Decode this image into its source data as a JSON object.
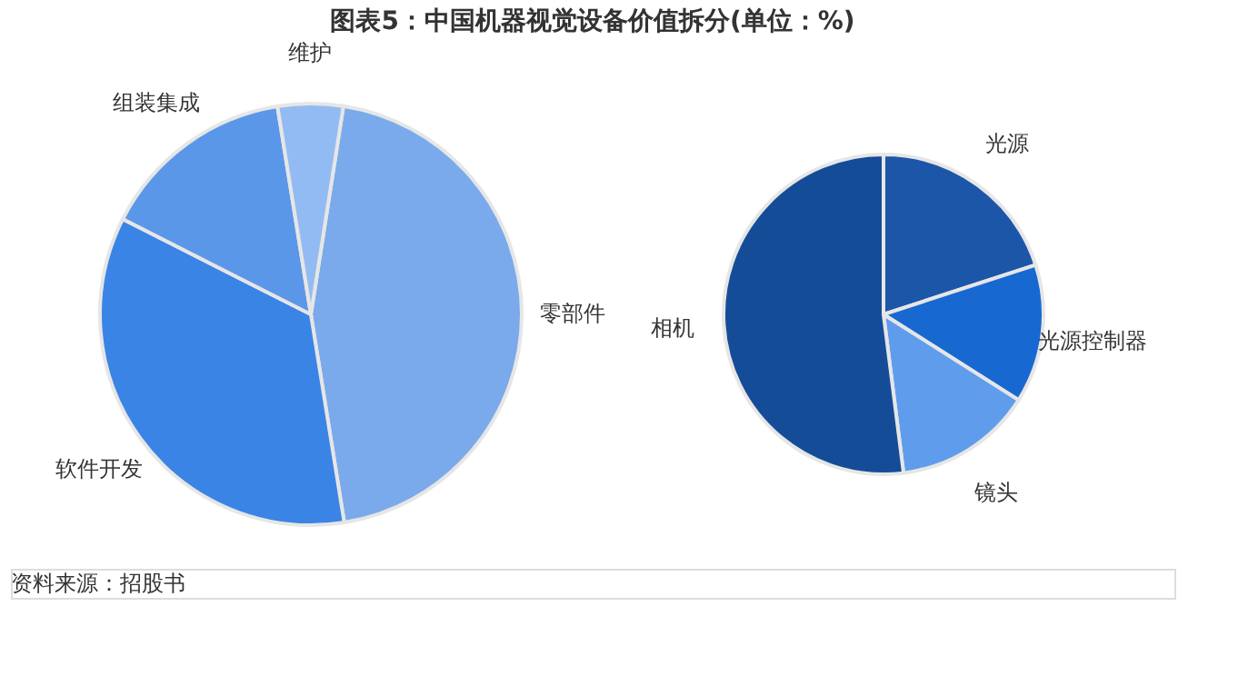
{
  "chart_data": [
    {
      "type": "pie",
      "title": "图表5：中国机器视觉设备价值拆分(单位：%)",
      "categories": [
        "零部件",
        "软件开发",
        "组装集成",
        "维护"
      ],
      "values": [
        45,
        35,
        15,
        5
      ],
      "colors": [
        "#7aaaeb",
        "#3a84e6",
        "#5b97e8",
        "#93bbf3"
      ],
      "annotations": [
        "资料来源：招股书"
      ]
    },
    {
      "type": "pie",
      "categories": [
        "光源",
        "光源控制器",
        "镜头",
        "相机"
      ],
      "values": [
        20,
        14,
        14,
        52
      ],
      "colors": [
        "#1c56a8",
        "#1868d2",
        "#5f9dec",
        "#144c98"
      ]
    }
  ]
}
